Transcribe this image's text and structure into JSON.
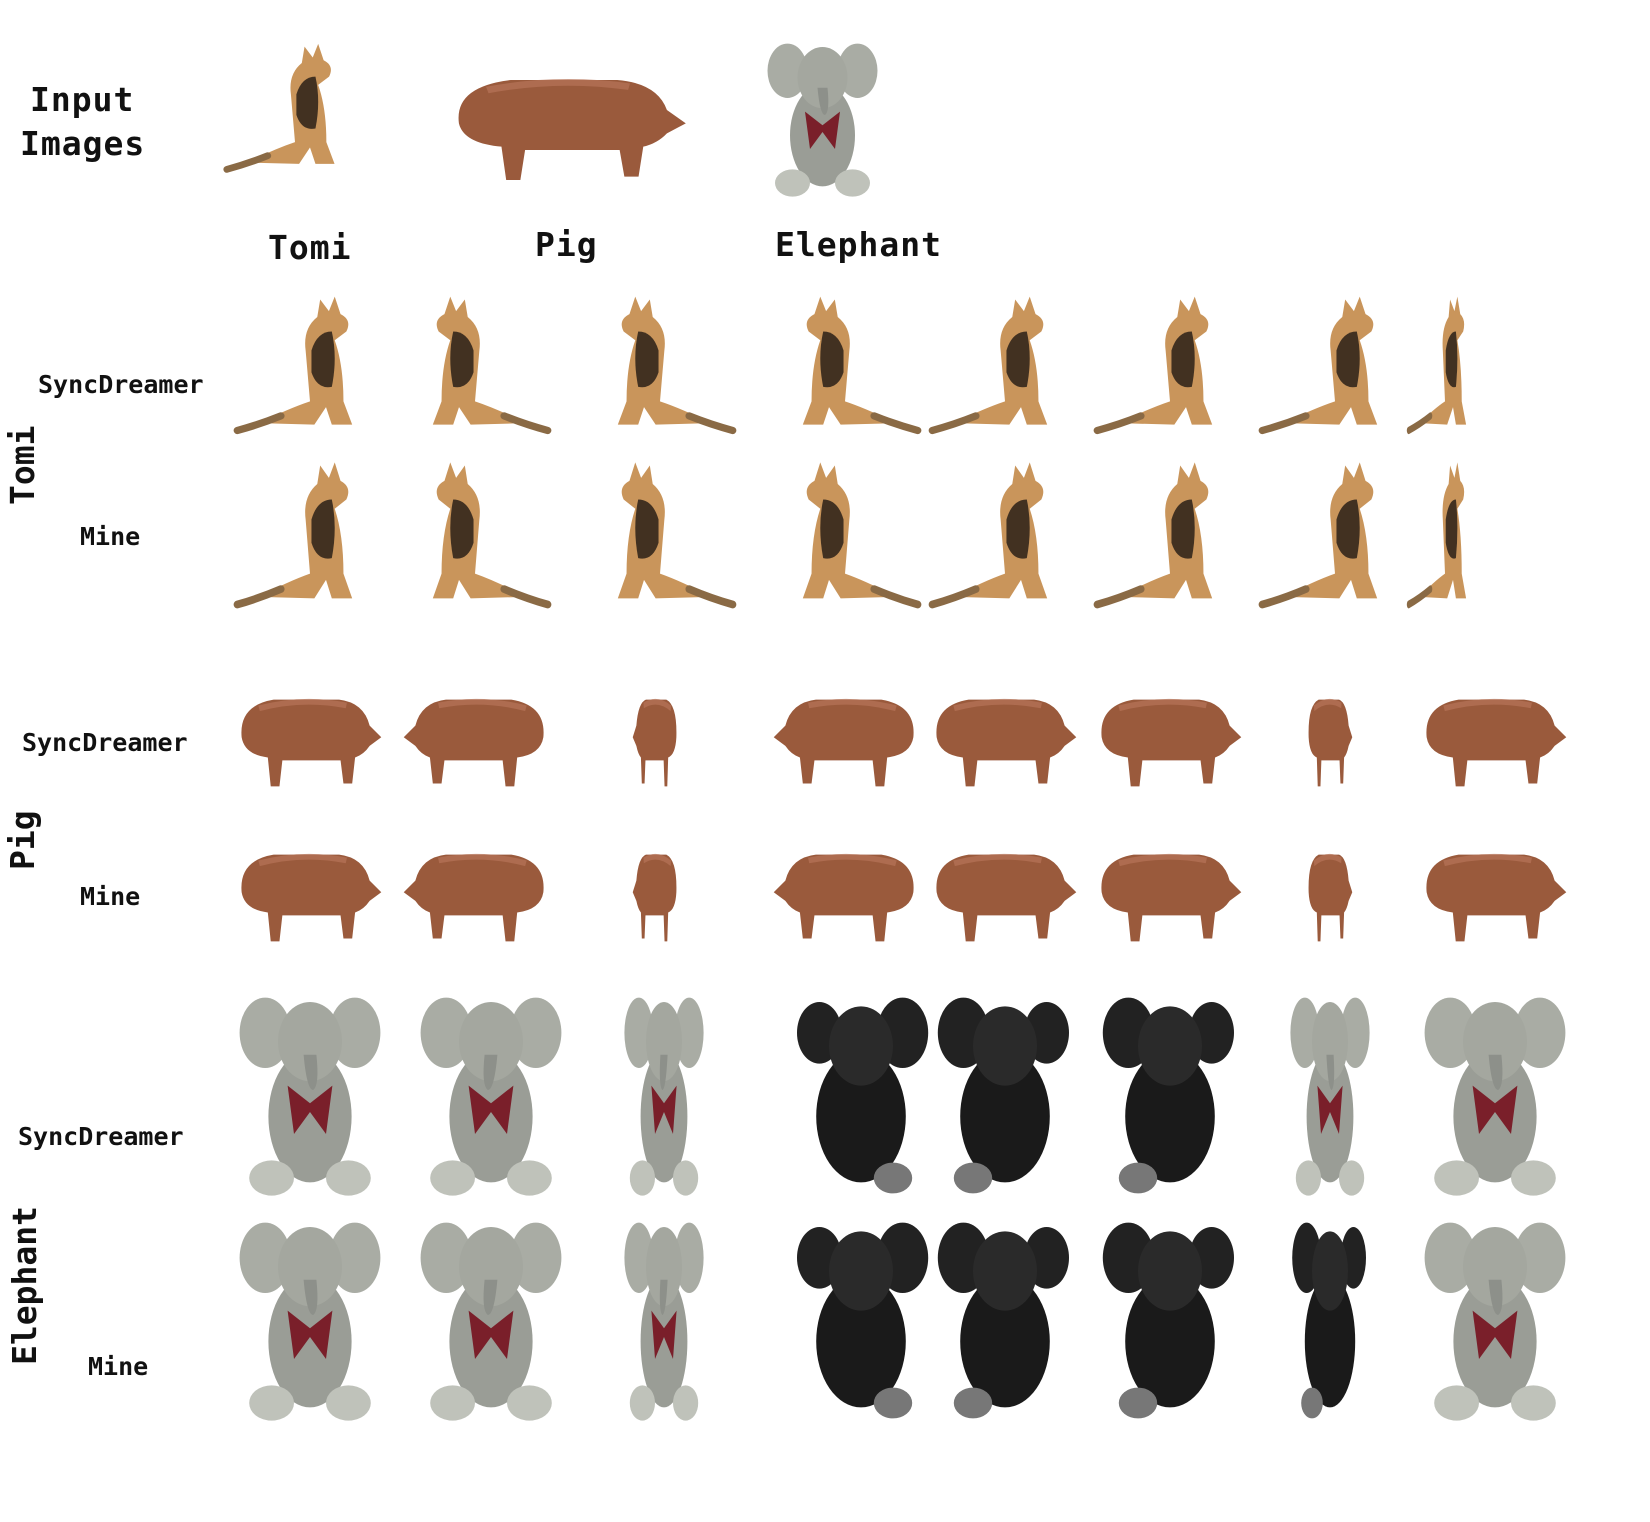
{
  "input_title_line1": "Input",
  "input_title_line2": "Images",
  "inputs": [
    {
      "label": "Tomi",
      "icon": "dog-icon"
    },
    {
      "label": "Pig",
      "icon": "pig-icon"
    },
    {
      "label": "Elephant",
      "icon": "plush-elephant-icon"
    }
  ],
  "groups": [
    {
      "label": "Tomi",
      "rows": [
        "SyncDreamer",
        "Mine"
      ]
    },
    {
      "label": "Pig",
      "rows": [
        "SyncDreamer",
        "Mine"
      ]
    },
    {
      "label": "Elephant",
      "rows": [
        "SyncDreamer",
        "Mine"
      ]
    }
  ],
  "views_per_row": 8,
  "colors": {
    "dog_tan": "#c9955b",
    "dog_dark": "#2a2018",
    "pig": "#9a5a3c",
    "elephant_gray": "#9a9d96",
    "elephant_dark": "#1a1a1a",
    "bow": "#7a1f2a"
  }
}
